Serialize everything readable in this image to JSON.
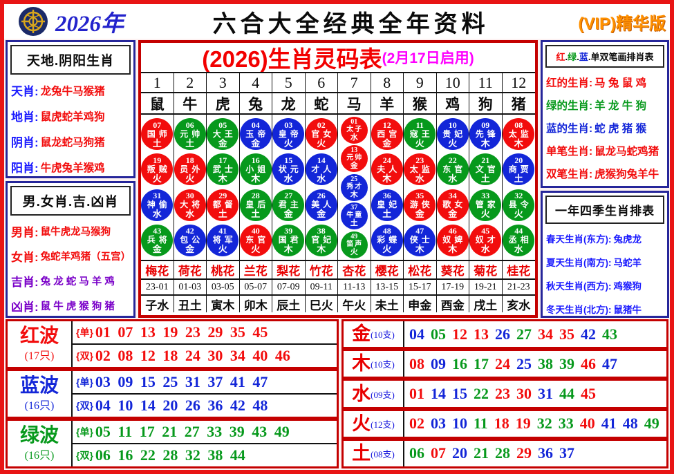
{
  "palette": {
    "red": "#f20d0d",
    "green": "#07991c",
    "blue": "#1326d8",
    "label_blue": "#1a1aff",
    "magenta": "#ff00ff",
    "purple": "#7a00c8",
    "orange": "#ff9100",
    "black": "#0b0b0b"
  },
  "header": {
    "year": "2026年",
    "title": "六合大全经典全年资料",
    "vip": "(VIP)精华版"
  },
  "left_top": {
    "title": "天地.阴阳生肖",
    "rows": [
      {
        "label": "天肖:",
        "value": "龙兔牛马猴猪"
      },
      {
        "label": "地肖:",
        "value": "鼠虎蛇羊鸡狗"
      },
      {
        "label": "阴肖:",
        "value": "鼠龙蛇马狗猪"
      },
      {
        "label": "阳肖:",
        "value": "牛虎兔羊猴鸡"
      }
    ]
  },
  "left_bottom": {
    "title": "男.女肖.吉.凶肖",
    "rows": [
      {
        "label": "男肖:",
        "value": "鼠牛虎龙马猴狗",
        "color": "red"
      },
      {
        "label": "女肖:",
        "value": "兔蛇羊鸡猪（五宫）",
        "color": "red"
      },
      {
        "label": "吉肖:",
        "value": "兔 龙 蛇 马 羊 鸡",
        "color": "purple"
      },
      {
        "label": "凶肖:",
        "value": "鼠 牛 虎 猴 狗 猪",
        "color": "purple"
      }
    ]
  },
  "right_top": {
    "title_parts": [
      [
        "红",
        "red"
      ],
      [
        ".",
        "black"
      ],
      [
        "绿",
        "green"
      ],
      [
        ".",
        "black"
      ],
      [
        "蓝",
        "blue"
      ],
      [
        ".",
        "black"
      ],
      [
        "单双笔画排肖表",
        "black"
      ]
    ],
    "rows": [
      {
        "label": "红的生肖:",
        "value": "马 兔 鼠 鸡",
        "color": "red"
      },
      {
        "label": "绿的生肖:",
        "value": "羊 龙 牛 狗",
        "color": "green"
      },
      {
        "label": "蓝的生肖:",
        "value": "蛇 虎 猪 猴",
        "color": "blue"
      },
      {
        "label": "单笔生肖:",
        "value": "鼠龙马蛇鸡猪",
        "color": "red"
      },
      {
        "label": "双笔生肖:",
        "value": "虎猴狗兔羊牛",
        "color": "red"
      }
    ]
  },
  "right_bottom": {
    "title": "一年四季生肖排表",
    "rows": [
      {
        "label": "春天生肖(东方):",
        "value": "兔虎龙"
      },
      {
        "label": "夏天生肖(南方):",
        "value": "马蛇羊"
      },
      {
        "label": "秋天生肖(西方):",
        "value": "鸡猴狗"
      },
      {
        "label": "冬天生肖(北方):",
        "value": "鼠猪牛"
      }
    ]
  },
  "main": {
    "title": "(2026)生肖灵码表",
    "subtitle": "(2月17日启用)",
    "columns": [
      {
        "num": "1",
        "zodiac": "鼠",
        "flower": "梅花",
        "time": "23-01",
        "branch": "子水",
        "balls": [
          [
            "07",
            "国师",
            "土",
            "red"
          ],
          [
            "19",
            "叛贼",
            "火",
            "red"
          ],
          [
            "31",
            "神偷",
            "水",
            "blue"
          ],
          [
            "43",
            "兵将",
            "金",
            "green"
          ]
        ]
      },
      {
        "num": "2",
        "zodiac": "牛",
        "flower": "荷花",
        "time": "01-03",
        "branch": "丑土",
        "balls": [
          [
            "06",
            "元帅",
            "土",
            "green"
          ],
          [
            "18",
            "员外",
            "火",
            "red"
          ],
          [
            "30",
            "大将",
            "水",
            "red"
          ],
          [
            "42",
            "包公",
            "金",
            "blue"
          ]
        ]
      },
      {
        "num": "3",
        "zodiac": "虎",
        "flower": "桃花",
        "time": "03-05",
        "branch": "寅木",
        "balls": [
          [
            "05",
            "大王",
            "金",
            "green"
          ],
          [
            "17",
            "武士",
            "木",
            "green"
          ],
          [
            "29",
            "都督",
            "土",
            "red"
          ],
          [
            "41",
            "将军",
            "火",
            "blue"
          ]
        ]
      },
      {
        "num": "4",
        "zodiac": "兔",
        "flower": "兰花",
        "time": "05-07",
        "branch": "卯木",
        "balls": [
          [
            "04",
            "玉帝",
            "金",
            "blue"
          ],
          [
            "16",
            "小姐",
            "木",
            "green"
          ],
          [
            "28",
            "皇后",
            "土",
            "green"
          ],
          [
            "40",
            "东官",
            "火",
            "red"
          ]
        ]
      },
      {
        "num": "5",
        "zodiac": "龙",
        "flower": "梨花",
        "time": "07-09",
        "branch": "辰土",
        "balls": [
          [
            "03",
            "皇帝",
            "火",
            "blue"
          ],
          [
            "15",
            "状元",
            "水",
            "blue"
          ],
          [
            "27",
            "君主",
            "金",
            "green"
          ],
          [
            "39",
            "国君",
            "木",
            "green"
          ]
        ]
      },
      {
        "num": "6",
        "zodiac": "蛇",
        "flower": "竹花",
        "time": "09-11",
        "branch": "巳火",
        "balls": [
          [
            "02",
            "官女",
            "火",
            "red"
          ],
          [
            "14",
            "才人",
            "水",
            "blue"
          ],
          [
            "26",
            "美人",
            "金",
            "blue"
          ],
          [
            "38",
            "官妃",
            "木",
            "green"
          ]
        ]
      },
      {
        "num": "7",
        "zodiac": "马",
        "flower": "杏花",
        "time": "11-13",
        "branch": "午火",
        "small": true,
        "balls": [
          [
            "01",
            "太子",
            "水",
            "red"
          ],
          [
            "13",
            "元帅",
            "金",
            "red"
          ],
          [
            "25",
            "秀才",
            "木",
            "blue"
          ],
          [
            "37",
            "牛童",
            "土",
            "blue"
          ],
          [
            "49",
            "笛声",
            "火",
            "green"
          ]
        ]
      },
      {
        "num": "8",
        "zodiac": "羊",
        "flower": "樱花",
        "time": "13-15",
        "branch": "未土",
        "balls": [
          [
            "12",
            "西宫",
            "金",
            "red"
          ],
          [
            "24",
            "夫人",
            "木",
            "red"
          ],
          [
            "36",
            "皇妃",
            "土",
            "blue"
          ],
          [
            "48",
            "彩蝶",
            "火",
            "blue"
          ]
        ]
      },
      {
        "num": "9",
        "zodiac": "猴",
        "flower": "松花",
        "time": "15-17",
        "branch": "申金",
        "balls": [
          [
            "11",
            "寇王",
            "火",
            "green"
          ],
          [
            "23",
            "太监",
            "水",
            "red"
          ],
          [
            "35",
            "游侠",
            "金",
            "red"
          ],
          [
            "47",
            "侠士",
            "木",
            "blue"
          ]
        ]
      },
      {
        "num": "10",
        "zodiac": "鸡",
        "flower": "葵花",
        "time": "17-19",
        "branch": "酉金",
        "balls": [
          [
            "10",
            "贵妃",
            "火",
            "blue"
          ],
          [
            "22",
            "东官",
            "水",
            "green"
          ],
          [
            "34",
            "歌女",
            "金",
            "red"
          ],
          [
            "46",
            "奴婢",
            "木",
            "red"
          ]
        ]
      },
      {
        "num": "11",
        "zodiac": "狗",
        "flower": "菊花",
        "time": "19-21",
        "branch": "戌土",
        "balls": [
          [
            "09",
            "先锋",
            "木",
            "blue"
          ],
          [
            "21",
            "文官",
            "土",
            "green"
          ],
          [
            "33",
            "管家",
            "火",
            "green"
          ],
          [
            "45",
            "奴才",
            "水",
            "red"
          ]
        ]
      },
      {
        "num": "12",
        "zodiac": "猪",
        "flower": "桂花",
        "time": "21-23",
        "branch": "亥水",
        "balls": [
          [
            "08",
            "太监",
            "木",
            "red"
          ],
          [
            "20",
            "商贾",
            "土",
            "blue"
          ],
          [
            "32",
            "县令",
            "火",
            "green"
          ],
          [
            "44",
            "丞相",
            "水",
            "green"
          ]
        ]
      }
    ]
  },
  "waves": [
    {
      "name": "红波",
      "count": "(17只)",
      "color": "red",
      "rows": [
        {
          "tag": "{单}",
          "nums": "01 07 13 19 23 29 35 45"
        },
        {
          "tag": "{双}",
          "nums": "02 08 12 18 24 30 34 40 46"
        }
      ]
    },
    {
      "name": "蓝波",
      "count": "(16只)",
      "color": "blue",
      "rows": [
        {
          "tag": "{单}",
          "nums": "03 09 15 25 31 37 41 47"
        },
        {
          "tag": "{双}",
          "nums": "04 10 14 20 26 36 42 48"
        }
      ]
    },
    {
      "name": "绿波",
      "count": "(16只)",
      "color": "green",
      "rows": [
        {
          "tag": "{单}",
          "nums": "05 11 17 21 27 33 39 43 49"
        },
        {
          "tag": "{双}",
          "nums": "06 16 22 28 32 38 44"
        }
      ]
    }
  ],
  "elements": [
    {
      "name": "金",
      "count": "(10支)",
      "nums": [
        [
          "04",
          "blue"
        ],
        [
          "05",
          "green"
        ],
        [
          "12",
          "red"
        ],
        [
          "13",
          "red"
        ],
        [
          "26",
          "blue"
        ],
        [
          "27",
          "green"
        ],
        [
          "34",
          "red"
        ],
        [
          "35",
          "red"
        ],
        [
          "42",
          "blue"
        ],
        [
          "43",
          "green"
        ]
      ]
    },
    {
      "name": "木",
      "count": "(10支)",
      "nums": [
        [
          "08",
          "red"
        ],
        [
          "09",
          "blue"
        ],
        [
          "16",
          "green"
        ],
        [
          "17",
          "green"
        ],
        [
          "24",
          "red"
        ],
        [
          "25",
          "blue"
        ],
        [
          "38",
          "green"
        ],
        [
          "39",
          "green"
        ],
        [
          "46",
          "red"
        ],
        [
          "47",
          "blue"
        ]
      ]
    },
    {
      "name": "水",
      "count": "(09支)",
      "nums": [
        [
          "01",
          "red"
        ],
        [
          "14",
          "blue"
        ],
        [
          "15",
          "blue"
        ],
        [
          "22",
          "green"
        ],
        [
          "23",
          "red"
        ],
        [
          "30",
          "red"
        ],
        [
          "31",
          "blue"
        ],
        [
          "44",
          "green"
        ],
        [
          "45",
          "red"
        ]
      ]
    },
    {
      "name": "火",
      "count": "(12支)",
      "nums": [
        [
          "02",
          "red"
        ],
        [
          "03",
          "blue"
        ],
        [
          "10",
          "blue"
        ],
        [
          "11",
          "green"
        ],
        [
          "18",
          "red"
        ],
        [
          "19",
          "red"
        ],
        [
          "32",
          "green"
        ],
        [
          "33",
          "green"
        ],
        [
          "40",
          "red"
        ],
        [
          "41",
          "blue"
        ],
        [
          "48",
          "blue"
        ],
        [
          "49",
          "green"
        ]
      ]
    },
    {
      "name": "土",
      "count": "(08支)",
      "nums": [
        [
          "06",
          "green"
        ],
        [
          "07",
          "red"
        ],
        [
          "20",
          "blue"
        ],
        [
          "21",
          "green"
        ],
        [
          "28",
          "green"
        ],
        [
          "29",
          "red"
        ],
        [
          "36",
          "blue"
        ],
        [
          "37",
          "blue"
        ]
      ]
    }
  ]
}
